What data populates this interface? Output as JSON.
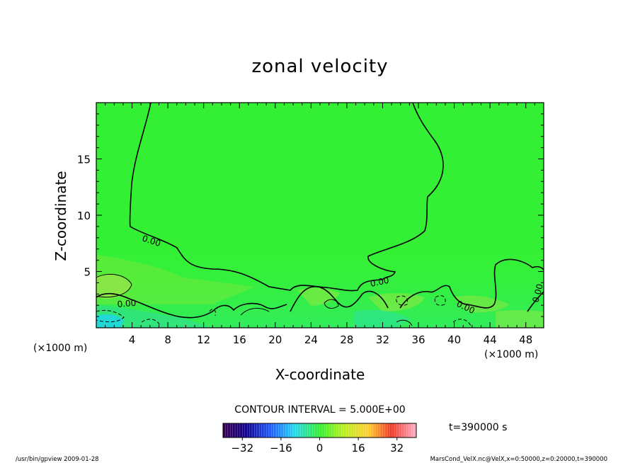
{
  "chart_data": {
    "type": "heatmap",
    "title": "zonal velocity",
    "xlabel": "X-coordinate",
    "ylabel": "Z-coordinate",
    "x_unit": "(×1000 m)",
    "y_unit": "(×1000 m)",
    "xlim": [
      0,
      50
    ],
    "ylim": [
      0,
      20
    ],
    "x_ticks": [
      4,
      8,
      12,
      16,
      20,
      24,
      28,
      32,
      36,
      40,
      44,
      48
    ],
    "y_ticks": [
      5,
      10,
      15
    ],
    "contour_interval_text": "CONTOUR INTERVAL = 5.000E+00",
    "contour_labels": [
      "0.00",
      "0.00",
      "0.00",
      "0.00",
      "0.00"
    ],
    "colorbar": {
      "min": -40,
      "max": 40,
      "ticks": [
        -32,
        -16,
        0,
        16,
        32
      ],
      "colormap": "rainbow (purple-blue-cyan-green-yellow-red-pink)"
    },
    "time_label": "t=390000 s",
    "field_description": "near-zero zonal velocity (green) over most of the domain; weak positive (light green) and negative (cyan) perturbations below z≈5",
    "colors": {
      "zero": "#34f034",
      "weak_positive": "#8cec3c",
      "weak_negative": "#2ad8a2",
      "negative": "#27d6e6"
    }
  },
  "footer": {
    "left": "/usr/bin/gpview  2009-01-28",
    "right": "MarsCond_VelX.nc@VelX,x=0:50000,z=0:20000,t=390000"
  }
}
